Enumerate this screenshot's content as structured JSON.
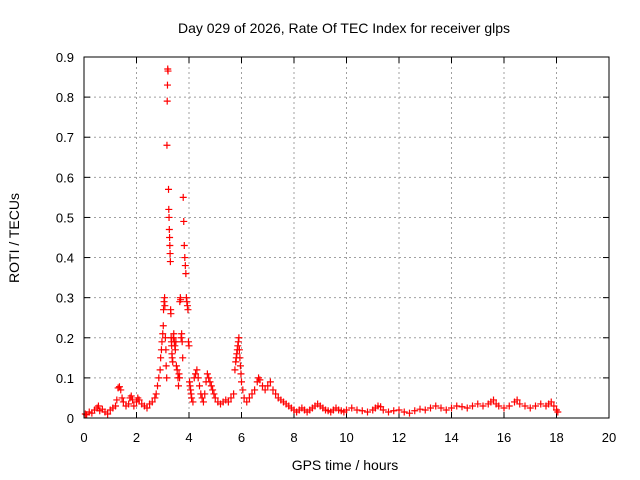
{
  "chart_data": {
    "type": "scatter",
    "title": "Day 029 of 2026, Rate Of TEC Index for receiver glps",
    "xlabel": "GPS time / hours",
    "ylabel": "ROTI / TECUs",
    "xlim": [
      0,
      20
    ],
    "ylim": [
      0,
      0.9
    ],
    "x_ticks": [
      0,
      2,
      4,
      6,
      8,
      10,
      12,
      14,
      16,
      18,
      20
    ],
    "y_ticks": [
      0,
      0.1,
      0.2,
      0.3,
      0.4,
      0.5,
      0.6,
      0.7,
      0.8,
      0.9
    ],
    "x_tick_labels": [
      "0",
      "2",
      "4",
      "6",
      "8",
      "10",
      "12",
      "14",
      "16",
      "18",
      "20"
    ],
    "y_tick_labels": [
      "0",
      "0.1",
      "0.2",
      "0.3",
      "0.4",
      "0.5",
      "0.6",
      "0.7",
      "0.8",
      "0.9"
    ],
    "grid": true,
    "marker": "+",
    "series_color": "#ff0000",
    "series": [
      {
        "name": "ROTI",
        "points": [
          [
            0.05,
            0.01
          ],
          [
            0.1,
            0.008
          ],
          [
            0.2,
            0.015
          ],
          [
            0.3,
            0.012
          ],
          [
            0.4,
            0.02
          ],
          [
            0.5,
            0.025
          ],
          [
            0.55,
            0.03
          ],
          [
            0.6,
            0.018
          ],
          [
            0.7,
            0.022
          ],
          [
            0.8,
            0.015
          ],
          [
            0.9,
            0.01
          ],
          [
            1.0,
            0.02
          ],
          [
            1.1,
            0.025
          ],
          [
            1.2,
            0.03
          ],
          [
            1.25,
            0.045
          ],
          [
            1.3,
            0.075
          ],
          [
            1.35,
            0.078
          ],
          [
            1.4,
            0.07
          ],
          [
            1.45,
            0.05
          ],
          [
            1.5,
            0.04
          ],
          [
            1.6,
            0.03
          ],
          [
            1.7,
            0.035
          ],
          [
            1.75,
            0.05
          ],
          [
            1.8,
            0.055
          ],
          [
            1.85,
            0.045
          ],
          [
            1.9,
            0.03
          ],
          [
            2.0,
            0.04
          ],
          [
            2.05,
            0.05
          ],
          [
            2.1,
            0.045
          ],
          [
            2.2,
            0.035
          ],
          [
            2.3,
            0.03
          ],
          [
            2.4,
            0.025
          ],
          [
            2.5,
            0.035
          ],
          [
            2.6,
            0.04
          ],
          [
            2.7,
            0.05
          ],
          [
            2.75,
            0.06
          ],
          [
            2.8,
            0.08
          ],
          [
            2.85,
            0.1
          ],
          [
            2.9,
            0.12
          ],
          [
            2.92,
            0.15
          ],
          [
            2.95,
            0.17
          ],
          [
            2.97,
            0.19
          ],
          [
            3.0,
            0.21
          ],
          [
            3.02,
            0.23
          ],
          [
            3.03,
            0.27
          ],
          [
            3.05,
            0.29
          ],
          [
            3.07,
            0.3
          ],
          [
            3.08,
            0.28
          ],
          [
            3.1,
            0.2
          ],
          [
            3.12,
            0.17
          ],
          [
            3.13,
            0.13
          ],
          [
            3.15,
            0.1
          ],
          [
            3.16,
            0.68
          ],
          [
            3.17,
            0.79
          ],
          [
            3.18,
            0.83
          ],
          [
            3.19,
            0.87
          ],
          [
            3.2,
            0.865
          ],
          [
            3.22,
            0.57
          ],
          [
            3.23,
            0.52
          ],
          [
            3.24,
            0.5
          ],
          [
            3.25,
            0.47
          ],
          [
            3.26,
            0.45
          ],
          [
            3.27,
            0.43
          ],
          [
            3.28,
            0.41
          ],
          [
            3.29,
            0.39
          ],
          [
            3.3,
            0.27
          ],
          [
            3.31,
            0.26
          ],
          [
            3.32,
            0.2
          ],
          [
            3.33,
            0.19
          ],
          [
            3.34,
            0.18
          ],
          [
            3.35,
            0.16
          ],
          [
            3.36,
            0.15
          ],
          [
            3.38,
            0.14
          ],
          [
            3.4,
            0.2
          ],
          [
            3.42,
            0.21
          ],
          [
            3.44,
            0.19
          ],
          [
            3.46,
            0.18
          ],
          [
            3.48,
            0.17
          ],
          [
            3.5,
            0.19
          ],
          [
            3.52,
            0.13
          ],
          [
            3.55,
            0.12
          ],
          [
            3.58,
            0.1
          ],
          [
            3.6,
            0.08
          ],
          [
            3.62,
            0.11
          ],
          [
            3.64,
            0.1
          ],
          [
            3.65,
            0.29
          ],
          [
            3.67,
            0.3
          ],
          [
            3.68,
            0.295
          ],
          [
            3.7,
            0.2
          ],
          [
            3.72,
            0.21
          ],
          [
            3.74,
            0.19
          ],
          [
            3.76,
            0.15
          ],
          [
            3.78,
            0.55
          ],
          [
            3.8,
            0.49
          ],
          [
            3.82,
            0.43
          ],
          [
            3.84,
            0.4
          ],
          [
            3.86,
            0.38
          ],
          [
            3.88,
            0.36
          ],
          [
            3.9,
            0.3
          ],
          [
            3.92,
            0.29
          ],
          [
            3.94,
            0.28
          ],
          [
            3.96,
            0.27
          ],
          [
            3.98,
            0.19
          ],
          [
            4.0,
            0.18
          ],
          [
            4.02,
            0.09
          ],
          [
            4.04,
            0.08
          ],
          [
            4.06,
            0.07
          ],
          [
            4.08,
            0.06
          ],
          [
            4.1,
            0.05
          ],
          [
            4.15,
            0.04
          ],
          [
            4.2,
            0.1
          ],
          [
            4.25,
            0.11
          ],
          [
            4.3,
            0.12
          ],
          [
            4.35,
            0.1
          ],
          [
            4.4,
            0.08
          ],
          [
            4.45,
            0.06
          ],
          [
            4.5,
            0.05
          ],
          [
            4.55,
            0.04
          ],
          [
            4.6,
            0.06
          ],
          [
            4.65,
            0.09
          ],
          [
            4.7,
            0.11
          ],
          [
            4.75,
            0.1
          ],
          [
            4.8,
            0.09
          ],
          [
            4.85,
            0.08
          ],
          [
            4.9,
            0.07
          ],
          [
            4.95,
            0.06
          ],
          [
            5.0,
            0.05
          ],
          [
            5.1,
            0.04
          ],
          [
            5.2,
            0.035
          ],
          [
            5.3,
            0.04
          ],
          [
            5.4,
            0.045
          ],
          [
            5.5,
            0.04
          ],
          [
            5.6,
            0.05
          ],
          [
            5.7,
            0.06
          ],
          [
            5.75,
            0.12
          ],
          [
            5.78,
            0.14
          ],
          [
            5.8,
            0.15
          ],
          [
            5.82,
            0.16
          ],
          [
            5.84,
            0.17
          ],
          [
            5.86,
            0.18
          ],
          [
            5.88,
            0.19
          ],
          [
            5.9,
            0.2
          ],
          [
            5.92,
            0.17
          ],
          [
            5.94,
            0.15
          ],
          [
            5.96,
            0.13
          ],
          [
            5.98,
            0.11
          ],
          [
            6.0,
            0.09
          ],
          [
            6.05,
            0.07
          ],
          [
            6.1,
            0.05
          ],
          [
            6.2,
            0.04
          ],
          [
            6.3,
            0.05
          ],
          [
            6.4,
            0.06
          ],
          [
            6.5,
            0.07
          ],
          [
            6.6,
            0.09
          ],
          [
            6.65,
            0.1
          ],
          [
            6.7,
            0.095
          ],
          [
            6.8,
            0.08
          ],
          [
            6.9,
            0.07
          ],
          [
            7.0,
            0.08
          ],
          [
            7.1,
            0.09
          ],
          [
            7.2,
            0.07
          ],
          [
            7.3,
            0.06
          ],
          [
            7.4,
            0.05
          ],
          [
            7.5,
            0.045
          ],
          [
            7.6,
            0.04
          ],
          [
            7.7,
            0.035
          ],
          [
            7.8,
            0.03
          ],
          [
            7.9,
            0.025
          ],
          [
            8.0,
            0.02
          ],
          [
            8.1,
            0.015
          ],
          [
            8.2,
            0.02
          ],
          [
            8.3,
            0.025
          ],
          [
            8.4,
            0.02
          ],
          [
            8.5,
            0.015
          ],
          [
            8.6,
            0.02
          ],
          [
            8.7,
            0.025
          ],
          [
            8.8,
            0.03
          ],
          [
            8.9,
            0.035
          ],
          [
            9.0,
            0.03
          ],
          [
            9.1,
            0.025
          ],
          [
            9.2,
            0.02
          ],
          [
            9.3,
            0.018
          ],
          [
            9.4,
            0.015
          ],
          [
            9.5,
            0.02
          ],
          [
            9.6,
            0.025
          ],
          [
            9.7,
            0.02
          ],
          [
            9.8,
            0.018
          ],
          [
            9.9,
            0.015
          ],
          [
            10.0,
            0.02
          ],
          [
            10.2,
            0.025
          ],
          [
            10.4,
            0.02
          ],
          [
            10.6,
            0.018
          ],
          [
            10.8,
            0.015
          ],
          [
            11.0,
            0.02
          ],
          [
            11.1,
            0.025
          ],
          [
            11.2,
            0.03
          ],
          [
            11.3,
            0.028
          ],
          [
            11.4,
            0.02
          ],
          [
            11.6,
            0.015
          ],
          [
            11.8,
            0.018
          ],
          [
            12.0,
            0.02
          ],
          [
            12.2,
            0.015
          ],
          [
            12.4,
            0.012
          ],
          [
            12.6,
            0.018
          ],
          [
            12.8,
            0.022
          ],
          [
            13.0,
            0.02
          ],
          [
            13.2,
            0.025
          ],
          [
            13.4,
            0.03
          ],
          [
            13.6,
            0.025
          ],
          [
            13.8,
            0.02
          ],
          [
            14.0,
            0.025
          ],
          [
            14.2,
            0.03
          ],
          [
            14.4,
            0.028
          ],
          [
            14.6,
            0.025
          ],
          [
            14.8,
            0.03
          ],
          [
            15.0,
            0.035
          ],
          [
            15.2,
            0.03
          ],
          [
            15.4,
            0.035
          ],
          [
            15.5,
            0.04
          ],
          [
            15.6,
            0.045
          ],
          [
            15.7,
            0.035
          ],
          [
            15.8,
            0.03
          ],
          [
            16.0,
            0.025
          ],
          [
            16.2,
            0.03
          ],
          [
            16.4,
            0.04
          ],
          [
            16.5,
            0.045
          ],
          [
            16.6,
            0.035
          ],
          [
            16.8,
            0.03
          ],
          [
            17.0,
            0.025
          ],
          [
            17.2,
            0.03
          ],
          [
            17.4,
            0.035
          ],
          [
            17.6,
            0.03
          ],
          [
            17.7,
            0.035
          ],
          [
            17.8,
            0.04
          ],
          [
            17.9,
            0.03
          ],
          [
            18.0,
            0.02
          ],
          [
            18.05,
            0.015
          ]
        ]
      }
    ]
  }
}
